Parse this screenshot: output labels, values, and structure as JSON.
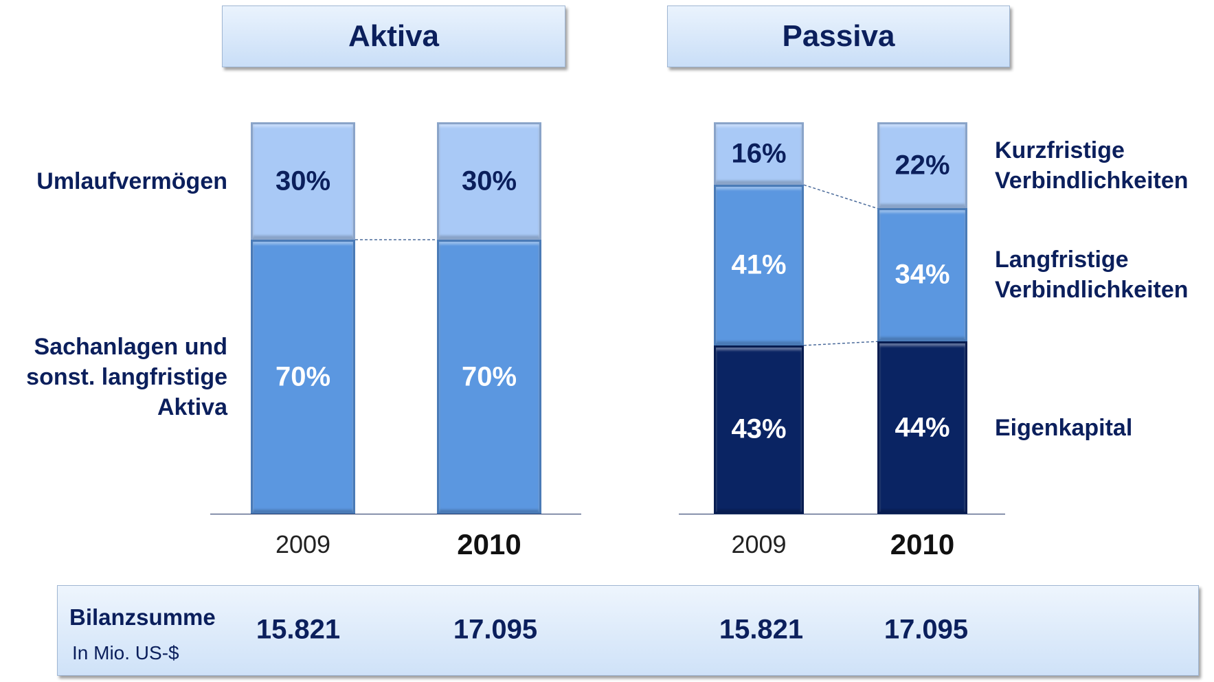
{
  "chart_data": [
    {
      "type": "bar",
      "stacked": true,
      "title": "Aktiva",
      "legend": "left",
      "categories": [
        "2009",
        "2010"
      ],
      "series": [
        {
          "name": "Sachanlagen und\nsonst. langfristige\nAktiva",
          "color": "#5b97e0",
          "label_color": "#ffffff",
          "values": [
            70,
            70
          ],
          "value_labels": [
            "70%",
            "70%"
          ]
        },
        {
          "name": "Umlaufvermögen",
          "color": "#a9c9f6",
          "label_color": "#0b1f5c",
          "values": [
            30,
            30
          ],
          "value_labels": [
            "30%",
            "30%"
          ]
        }
      ],
      "totals": {
        "values": [
          15821,
          17095
        ],
        "value_labels": [
          "15.821",
          "17.095"
        ]
      }
    },
    {
      "type": "bar",
      "stacked": true,
      "title": "Passiva",
      "legend": "right",
      "categories": [
        "2009",
        "2010"
      ],
      "series": [
        {
          "name": "Eigenkapital",
          "color": "#0a2463",
          "label_color": "#ffffff",
          "values": [
            43,
            44
          ],
          "value_labels": [
            "43%",
            "44%"
          ]
        },
        {
          "name": "Langfristige\nVerbindlichkeiten",
          "color": "#5b97e0",
          "label_color": "#ffffff",
          "values": [
            41,
            34
          ],
          "value_labels": [
            "41%",
            "34%"
          ]
        },
        {
          "name": "Kurzfristige\nVerbindlichkeiten",
          "color": "#a9c9f6",
          "label_color": "#0b1f5c",
          "values": [
            16,
            22
          ],
          "value_labels": [
            "16%",
            "22%"
          ]
        }
      ],
      "totals": {
        "values": [
          15821,
          17095
        ],
        "value_labels": [
          "15.821",
          "17.095"
        ]
      }
    }
  ],
  "summary": {
    "label": "Bilanzsumme",
    "unit": "In Mio. US-$"
  }
}
